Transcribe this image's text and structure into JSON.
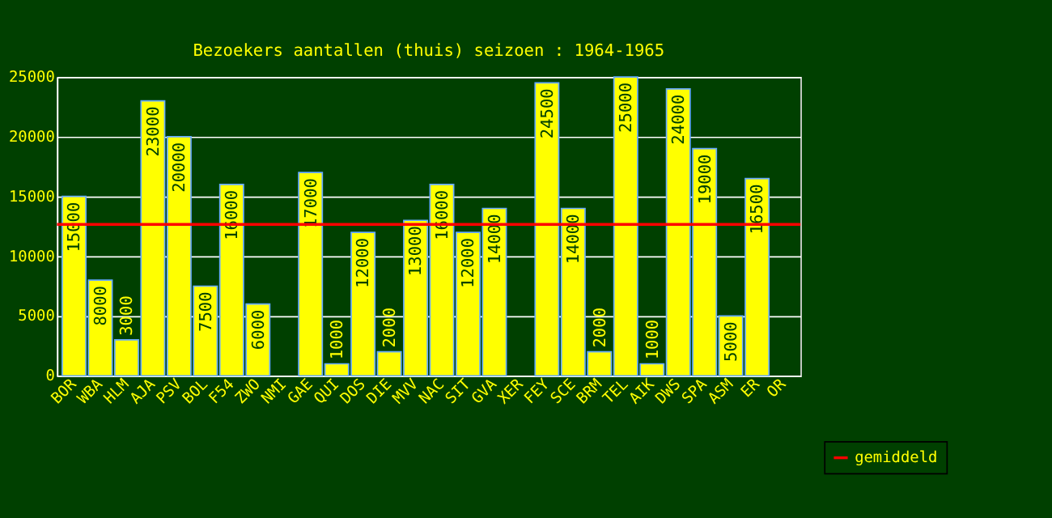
{
  "chart_data": {
    "type": "bar",
    "title": "Bezoekers aantallen (thuis) seizoen : 1964-1965",
    "categories": [
      "BOR",
      "WBA",
      "HLM",
      "AJA",
      "PSV",
      "BOL",
      "F54",
      "ZWO",
      "NMI",
      "GAE",
      "QUI",
      "DOS",
      "DIE",
      "MVV",
      "NAC",
      "SIT",
      "GVA",
      "XER",
      "FEY",
      "SCE",
      "BRM",
      "TEL",
      "AIK",
      "DWS",
      "SPA",
      "ASM",
      "ER",
      "OR"
    ],
    "values": [
      15000,
      8000,
      3000,
      23000,
      20000,
      7500,
      16000,
      6000,
      null,
      17000,
      1000,
      12000,
      2000,
      13000,
      16000,
      12000,
      14000,
      null,
      24500,
      14000,
      2000,
      25000,
      1000,
      24000,
      19000,
      5000,
      16500,
      null
    ],
    "color": "#ffff00",
    "data_labels": true,
    "ylim": [
      0,
      25000
    ],
    "yticks": [
      0,
      5000,
      10000,
      15000,
      20000,
      25000
    ],
    "grid": "y",
    "ref_lines": [
      {
        "axis": "y",
        "value": 12660,
        "label": "gemiddeld",
        "color": "#ff0000"
      }
    ],
    "legend": "bottom right"
  }
}
